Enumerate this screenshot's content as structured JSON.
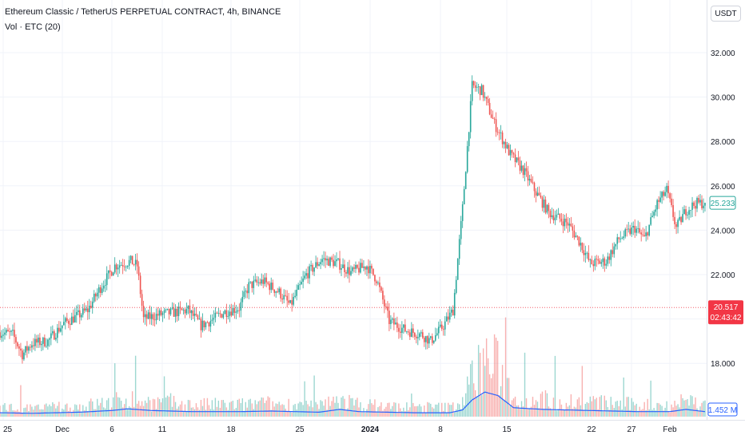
{
  "header": {
    "title": "Ethereum Classic / TetherUS PERPETUAL CONTRACT, 4h, BINANCE",
    "volume_label": "Vol · ETC (20)",
    "currency_button": "USDT"
  },
  "price_labels": {
    "last_price": "25.233",
    "crosshair_price": "20.517",
    "crosshair_time": "02:43:42",
    "volume_ma": "1.452 M"
  },
  "colors": {
    "up": "#26a69a",
    "down": "#ef5350",
    "volume_ma": "#2962ff",
    "crosshair": "#f23645",
    "grid": "#f0f3fa"
  },
  "chart_data": {
    "type": "candlestick",
    "interval": "4h",
    "y_axis_ticks": [
      18,
      20,
      22,
      24,
      26,
      28,
      30,
      32
    ],
    "y_tick_labels": [
      "18.000",
      "20.000",
      "22.000",
      "24.000",
      "26.000",
      "28.000",
      "30.000",
      "32.000"
    ],
    "ylim": [
      16.3,
      33.7
    ],
    "x_tick_labels": [
      "25",
      "Dec",
      "6",
      "11",
      "18",
      "25",
      "2024",
      "8",
      "15",
      "22",
      "27",
      "Feb"
    ],
    "crosshair_level": 20.517,
    "last_close": 25.233,
    "path_anchors_index_price": [
      [
        0,
        19.4
      ],
      [
        8,
        19.3
      ],
      [
        14,
        18.4
      ],
      [
        20,
        18.9
      ],
      [
        30,
        19.0
      ],
      [
        40,
        19.8
      ],
      [
        55,
        20.4
      ],
      [
        62,
        21.3
      ],
      [
        72,
        22.4
      ],
      [
        82,
        22.6
      ],
      [
        86,
        22.4
      ],
      [
        90,
        20.0
      ],
      [
        100,
        20.2
      ],
      [
        110,
        20.3
      ],
      [
        118,
        20.4
      ],
      [
        126,
        19.7
      ],
      [
        134,
        20.0
      ],
      [
        140,
        20.3
      ],
      [
        150,
        20.5
      ],
      [
        156,
        21.5
      ],
      [
        165,
        21.7
      ],
      [
        175,
        21.2
      ],
      [
        182,
        20.6
      ],
      [
        192,
        22.0
      ],
      [
        202,
        22.7
      ],
      [
        212,
        22.5
      ],
      [
        220,
        22.1
      ],
      [
        230,
        22.4
      ],
      [
        236,
        21.8
      ],
      [
        244,
        19.9
      ],
      [
        254,
        19.5
      ],
      [
        264,
        19.3
      ],
      [
        270,
        19.0
      ],
      [
        278,
        19.7
      ],
      [
        284,
        20.4
      ],
      [
        290,
        25.0
      ],
      [
        296,
        30.5
      ],
      [
        302,
        30.3
      ],
      [
        310,
        28.8
      ],
      [
        320,
        27.4
      ],
      [
        328,
        26.7
      ],
      [
        336,
        25.7
      ],
      [
        344,
        24.8
      ],
      [
        356,
        24.3
      ],
      [
        364,
        23.4
      ],
      [
        370,
        22.5
      ],
      [
        380,
        22.6
      ],
      [
        388,
        23.6
      ],
      [
        398,
        24.1
      ],
      [
        404,
        23.6
      ],
      [
        412,
        25.2
      ],
      [
        418,
        25.8
      ],
      [
        424,
        24.1
      ],
      [
        430,
        24.9
      ],
      [
        436,
        25.2
      ],
      [
        442,
        25.233
      ]
    ],
    "volume_ma_anchors_index_value": [
      [
        0,
        0.35
      ],
      [
        20,
        0.3
      ],
      [
        50,
        0.4
      ],
      [
        70,
        0.55
      ],
      [
        80,
        0.7
      ],
      [
        95,
        0.55
      ],
      [
        120,
        0.45
      ],
      [
        150,
        0.45
      ],
      [
        170,
        0.5
      ],
      [
        200,
        0.4
      ],
      [
        213,
        0.65
      ],
      [
        225,
        0.45
      ],
      [
        260,
        0.35
      ],
      [
        282,
        0.35
      ],
      [
        290,
        0.6
      ],
      [
        296,
        1.5
      ],
      [
        304,
        2.2
      ],
      [
        312,
        1.9
      ],
      [
        322,
        0.8
      ],
      [
        340,
        0.65
      ],
      [
        370,
        0.55
      ],
      [
        400,
        0.45
      ],
      [
        420,
        0.45
      ],
      [
        430,
        0.65
      ],
      [
        442,
        0.45
      ]
    ]
  }
}
